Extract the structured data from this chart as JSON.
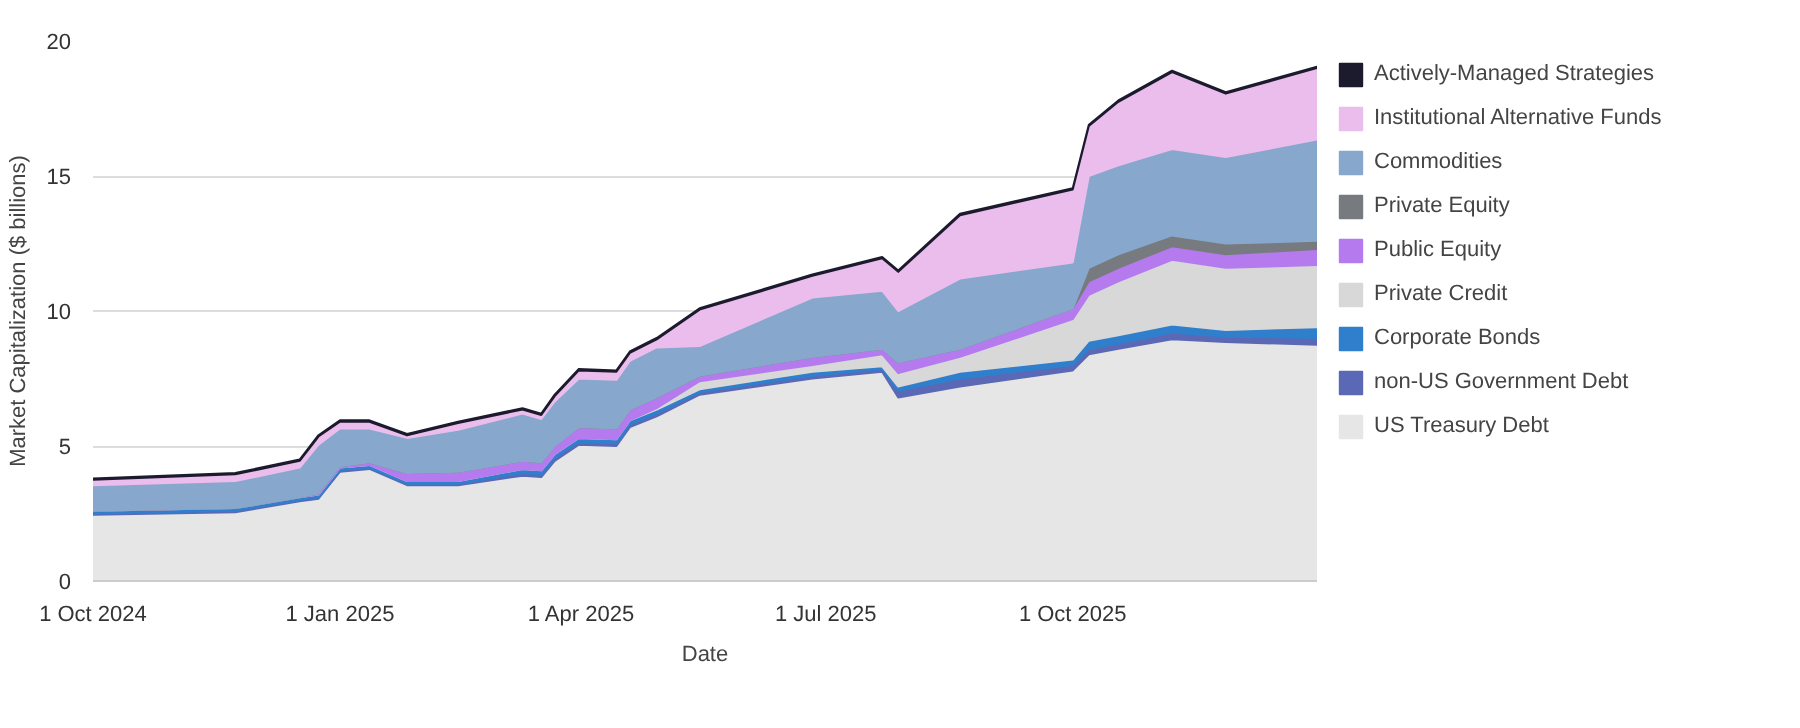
{
  "chart_data": {
    "type": "area",
    "stacked": true,
    "xlabel": "Date",
    "ylabel": "Market Capitalization ($ billions)",
    "x": [
      "2024-10-01",
      "2024-11-23",
      "2024-12-17",
      "2024-12-24",
      "2025-01-01",
      "2025-01-12",
      "2025-01-26",
      "2025-02-14",
      "2025-03-10",
      "2025-03-17",
      "2025-03-22",
      "2025-03-31",
      "2025-04-14",
      "2025-04-19",
      "2025-04-29",
      "2025-05-15",
      "2025-06-26",
      "2025-07-22",
      "2025-07-28",
      "2025-08-20",
      "2025-10-01",
      "2025-10-07",
      "2025-10-18",
      "2025-11-07",
      "2025-11-27",
      "2025-12-31"
    ],
    "series": [
      {
        "name": "US Treasury Debt",
        "color": "#e6e6e6",
        "values": [
          2.45,
          2.55,
          2.95,
          3.05,
          4.05,
          4.15,
          3.55,
          3.55,
          3.9,
          3.85,
          4.45,
          5.05,
          5.0,
          5.7,
          6.1,
          6.9,
          7.5,
          7.75,
          6.8,
          7.2,
          7.8,
          8.4,
          8.6,
          8.95,
          8.85,
          8.75
        ]
      },
      {
        "name": "non-US Government Debt",
        "color": "#5b68b5",
        "values": [
          0.05,
          0.05,
          0.05,
          0.05,
          0.05,
          0.05,
          0.05,
          0.05,
          0.1,
          0.1,
          0.1,
          0.1,
          0.1,
          0.1,
          0.1,
          0.1,
          0.1,
          0.1,
          0.25,
          0.3,
          0.2,
          0.2,
          0.2,
          0.25,
          0.2,
          0.25
        ]
      },
      {
        "name": "Corporate Bonds",
        "color": "#2f7fcc",
        "values": [
          0.1,
          0.1,
          0.1,
          0.1,
          0.1,
          0.1,
          0.1,
          0.1,
          0.15,
          0.15,
          0.15,
          0.15,
          0.15,
          0.15,
          0.15,
          0.1,
          0.15,
          0.1,
          0.15,
          0.25,
          0.2,
          0.3,
          0.3,
          0.3,
          0.25,
          0.4
        ]
      },
      {
        "name": "Private Credit",
        "color": "#d8d8d8",
        "values": [
          0,
          0,
          0,
          0,
          0,
          0,
          0,
          0,
          0,
          0,
          0,
          0,
          0,
          0,
          0.05,
          0.3,
          0.25,
          0.45,
          0.5,
          0.55,
          1.5,
          1.7,
          2.0,
          2.4,
          2.3,
          2.3
        ]
      },
      {
        "name": "Public Equity",
        "color": "#b57bee",
        "values": [
          0,
          0,
          0,
          0.05,
          0.05,
          0.1,
          0.3,
          0.35,
          0.3,
          0.3,
          0.3,
          0.4,
          0.4,
          0.4,
          0.4,
          0.2,
          0.3,
          0.2,
          0.4,
          0.3,
          0.4,
          0.5,
          0.5,
          0.5,
          0.5,
          0.6
        ]
      },
      {
        "name": "Private Equity",
        "color": "#777b80",
        "values": [
          0,
          0,
          0,
          0,
          0,
          0,
          0,
          0,
          0,
          0,
          0,
          0,
          0,
          0,
          0,
          0,
          0,
          0,
          0,
          0,
          0,
          0.5,
          0.5,
          0.4,
          0.4,
          0.3
        ]
      },
      {
        "name": "Commodities",
        "color": "#87a8cc",
        "values": [
          0.95,
          1.0,
          1.1,
          1.8,
          1.4,
          1.25,
          1.3,
          1.55,
          1.75,
          1.6,
          1.65,
          1.8,
          1.8,
          1.8,
          1.85,
          1.1,
          2.2,
          2.15,
          1.9,
          2.6,
          1.7,
          3.4,
          3.3,
          3.2,
          3.2,
          3.75
        ]
      },
      {
        "name": "Institutional Alternative Funds",
        "color": "#ebbdec",
        "values": [
          0.2,
          0.25,
          0.25,
          0.3,
          0.25,
          0.25,
          0.1,
          0.25,
          0.15,
          0.15,
          0.2,
          0.3,
          0.3,
          0.3,
          0.3,
          1.35,
          0.8,
          1.2,
          1.45,
          2.35,
          2.7,
          1.85,
          2.35,
          2.85,
          2.35,
          2.65
        ]
      },
      {
        "name": "Actively-Managed Strategies",
        "color": "#1c1b2e",
        "values": [
          0.05,
          0.05,
          0.05,
          0.05,
          0.05,
          0.05,
          0.05,
          0.05,
          0.05,
          0.05,
          0.05,
          0.05,
          0.05,
          0.05,
          0.05,
          0.05,
          0.05,
          0.05,
          0.05,
          0.05,
          0.05,
          0.05,
          0.05,
          0.05,
          0.05,
          0.05
        ]
      }
    ],
    "xlim": [
      "2024-10-01",
      "2025-12-31"
    ],
    "xticks": [
      {
        "value": "2024-10-01",
        "label": "1 Oct 2024"
      },
      {
        "value": "2025-01-01",
        "label": "1 Jan 2025"
      },
      {
        "value": "2025-04-01",
        "label": "1 Apr 2025"
      },
      {
        "value": "2025-07-01",
        "label": "1 Jul 2025"
      },
      {
        "value": "2025-10-01",
        "label": "1 Oct 2025"
      }
    ],
    "ylim": [
      0,
      20
    ],
    "yticks": [
      0,
      5,
      10,
      15,
      20
    ],
    "grid": "y",
    "legend": "right"
  }
}
